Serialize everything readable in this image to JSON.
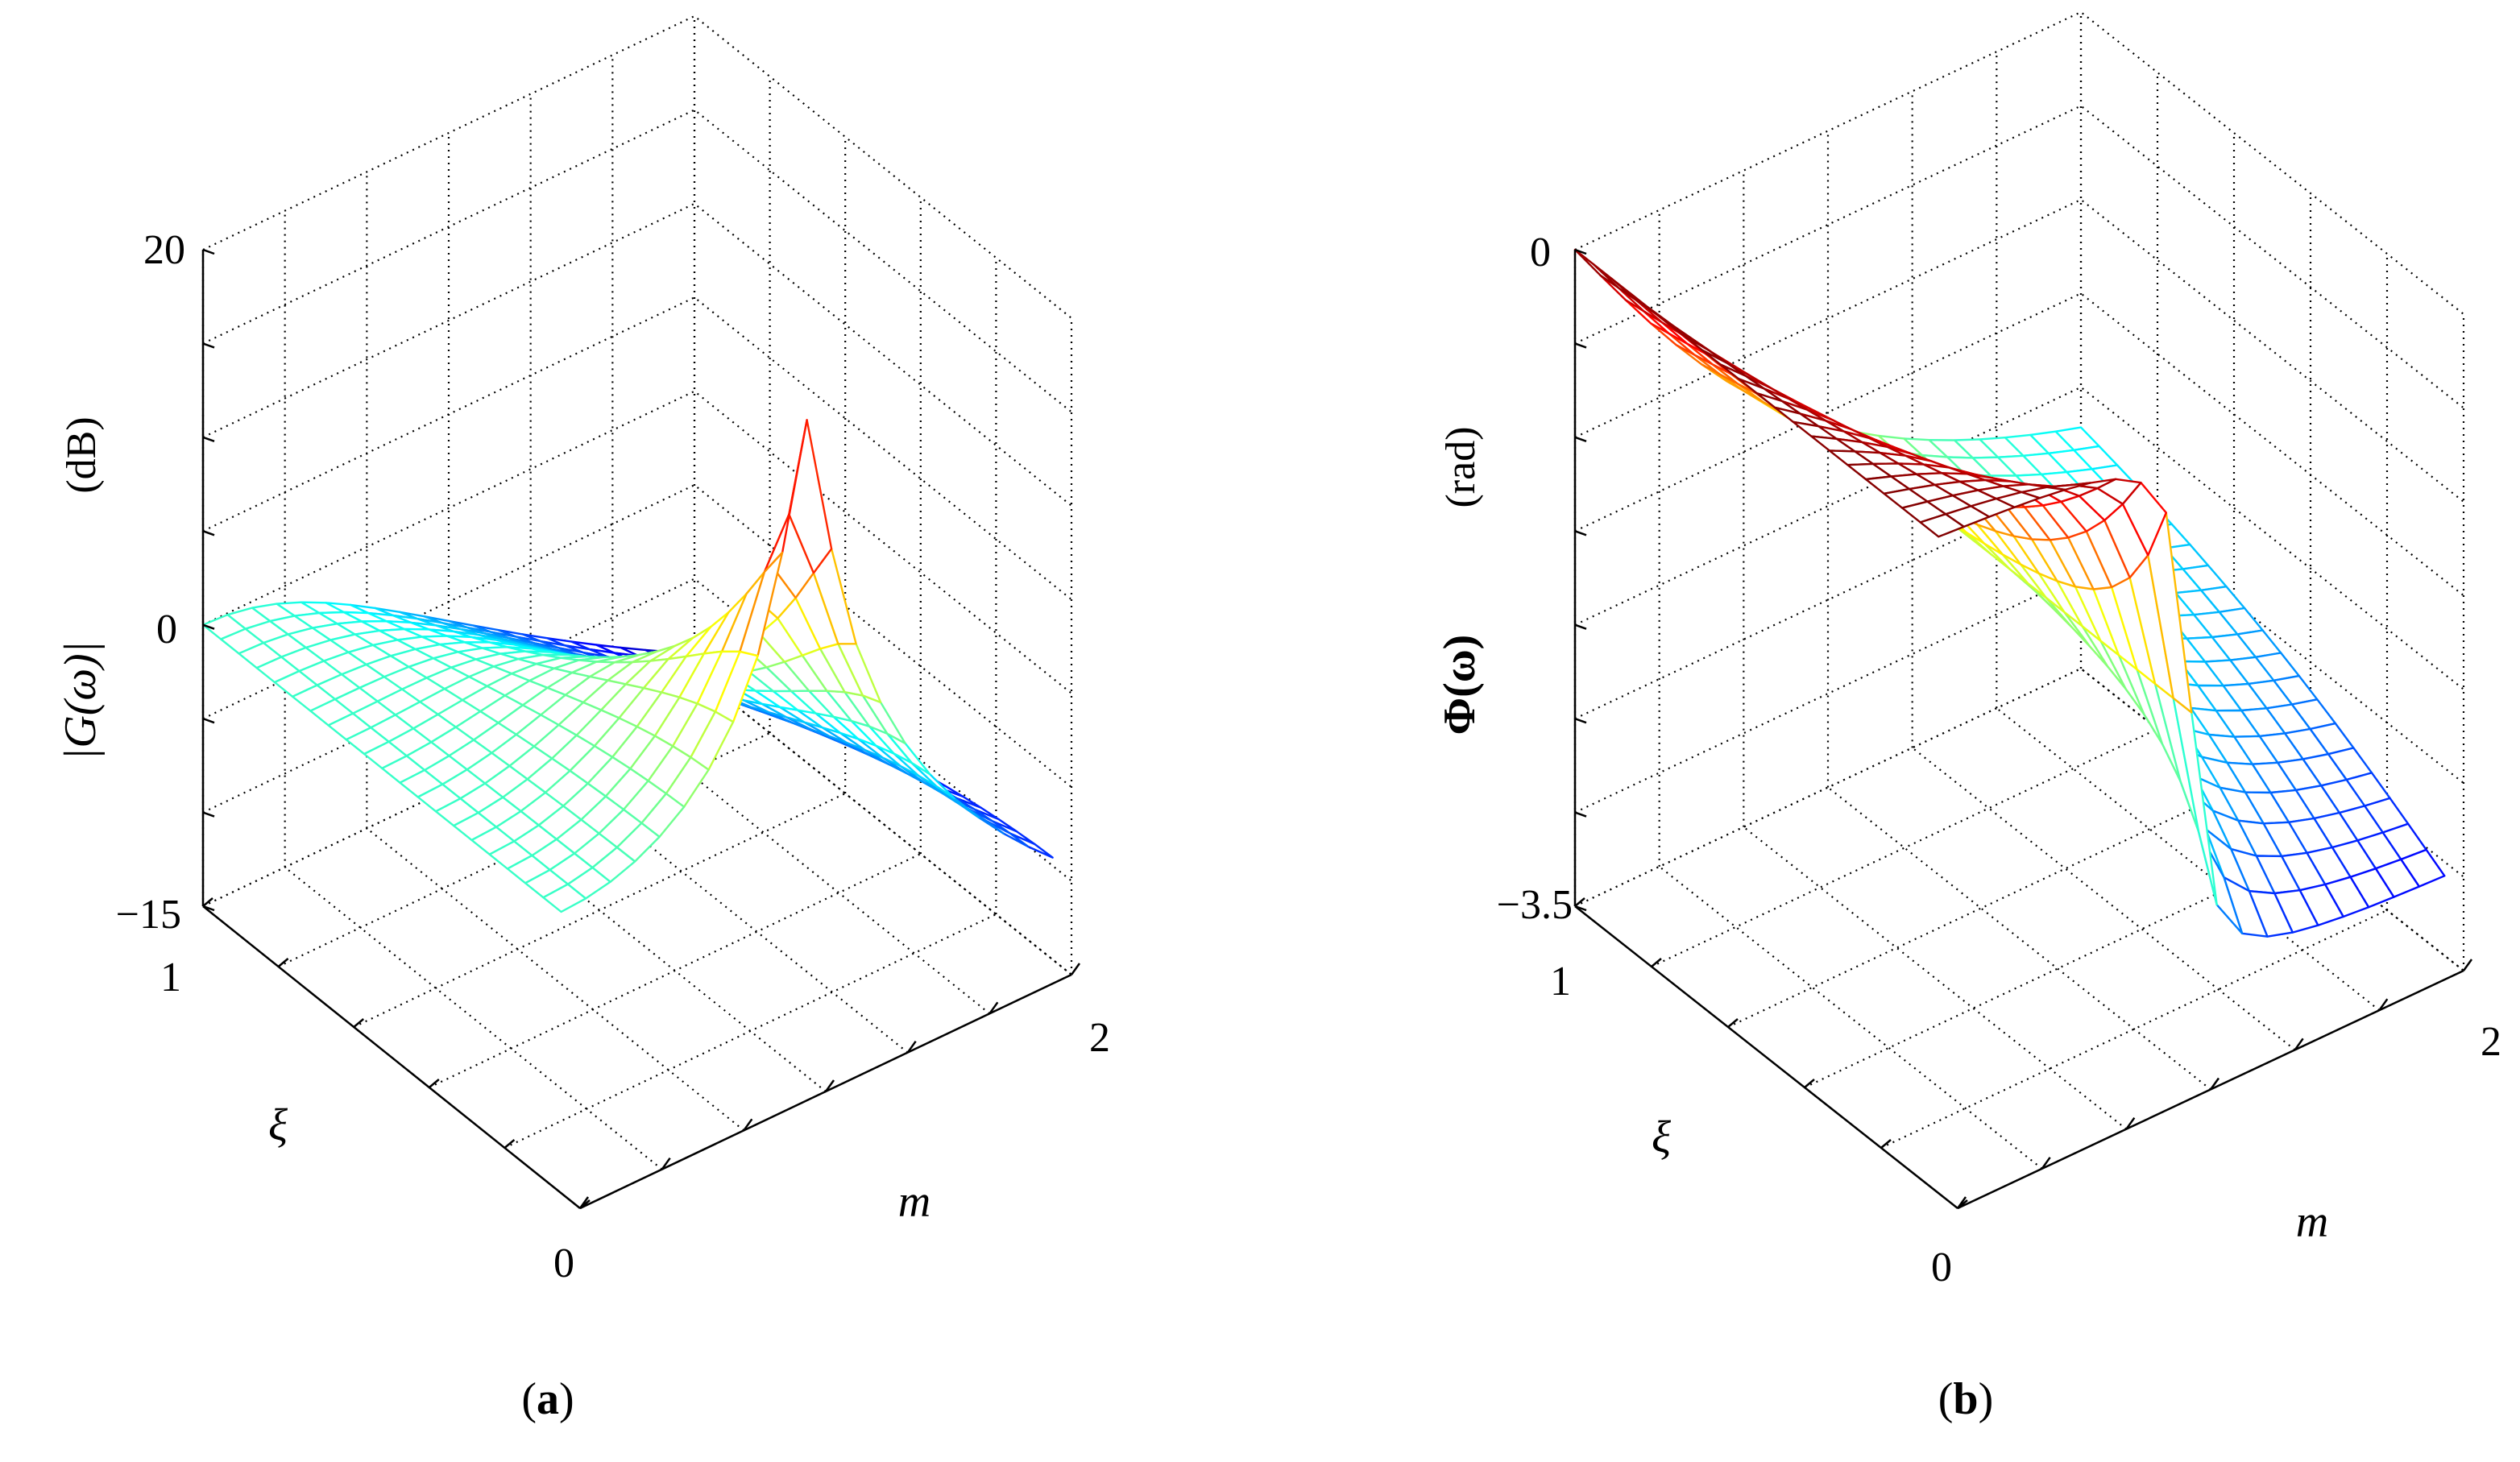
{
  "figure": {
    "caption_a_open": "(",
    "caption_a_letter": "a",
    "caption_a_close": ")",
    "caption_b_open": "(",
    "caption_b_letter": "b",
    "caption_b_close": ")"
  },
  "colors": {
    "colormap": "jet",
    "grid": "#000000",
    "background": "#ffffff"
  },
  "chart_data": [
    {
      "id": "a",
      "type": "surface-mesh",
      "title": "",
      "zlabel_main": "|G(ω)|",
      "zlabel_unit": "(dB)",
      "xlabel": "m",
      "ylabel": "ξ",
      "x_range": [
        0,
        2
      ],
      "y_range": [
        0,
        1
      ],
      "z_range": [
        -15,
        20
      ],
      "z_ticks": [
        -15,
        0,
        20
      ],
      "z_tick_labels": [
        "−15",
        "0",
        "20"
      ],
      "x_tick_labels": [
        "2"
      ],
      "y_tick_labels": [
        "1"
      ],
      "origin_label": "0",
      "mesh": {
        "x_count": 21,
        "y_count": 21,
        "xi_min": 0.05
      },
      "function": "20*log10(1/sqrt((1-m^2)^2+(2*xi*m)^2))",
      "peak": {
        "m": 1.0,
        "xi": 0.05,
        "db": 20.0
      },
      "samples_db": [
        {
          "m": 0.0,
          "xi": 1.0,
          "db": 0.0
        },
        {
          "m": 1.0,
          "xi": 1.0,
          "db": -6.0
        },
        {
          "m": 2.0,
          "xi": 1.0,
          "db": -14.0
        },
        {
          "m": 2.0,
          "xi": 0.05,
          "db": -9.5
        }
      ]
    },
    {
      "id": "b",
      "type": "surface-mesh",
      "title": "",
      "zlabel_main": "Φ(ω)",
      "zlabel_unit": "(rad)",
      "xlabel": "m",
      "ylabel": "ξ",
      "x_range": [
        0,
        2
      ],
      "y_range": [
        0,
        1
      ],
      "z_range": [
        -3.5,
        0
      ],
      "z_ticks": [
        -3.5,
        0
      ],
      "z_tick_labels": [
        "−3.5",
        "0"
      ],
      "x_tick_labels": [
        "2"
      ],
      "y_tick_labels": [
        "1"
      ],
      "origin_label": "0",
      "mesh": {
        "x_count": 21,
        "y_count": 21,
        "xi_min": 0.05
      },
      "function": "-atan2(2*xi*m, 1-m^2)",
      "samples_rad": [
        {
          "m": 0.0,
          "xi": 1.0,
          "rad": 0.0
        },
        {
          "m": 1.0,
          "xi": 1.0,
          "rad": -1.571
        },
        {
          "m": 2.0,
          "xi": 1.0,
          "rad": -2.214
        },
        {
          "m": 2.0,
          "xi": 0.05,
          "rad": -3.075
        }
      ]
    }
  ]
}
